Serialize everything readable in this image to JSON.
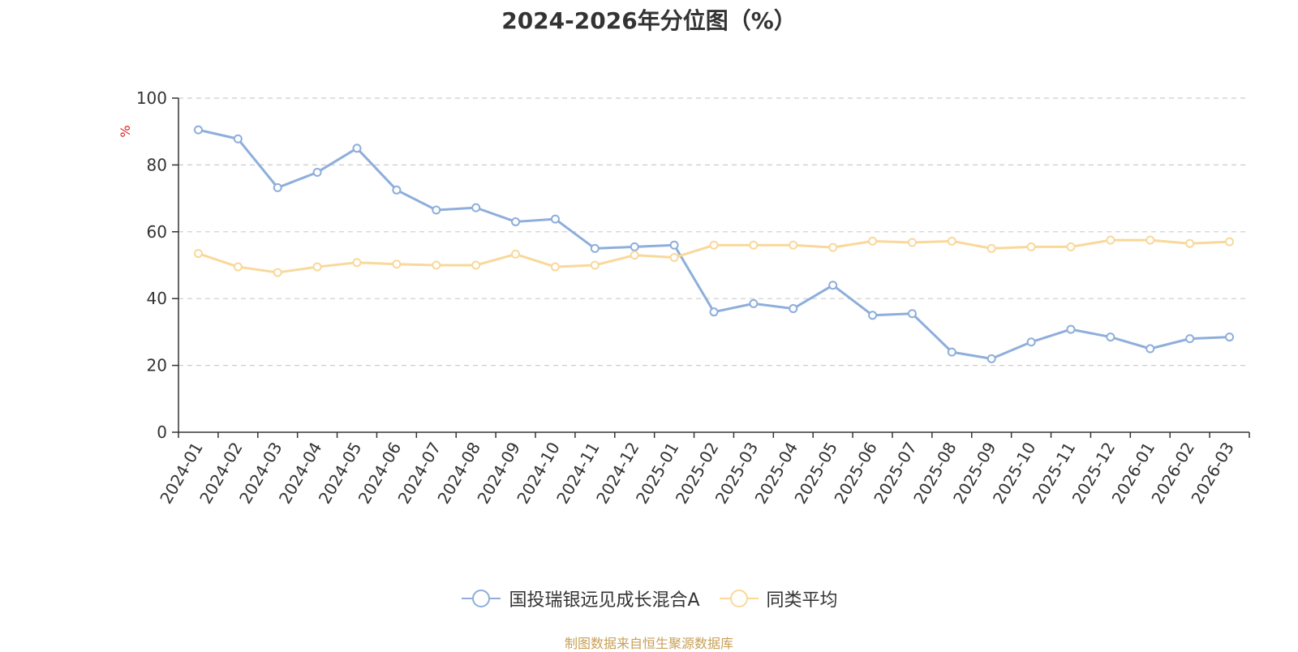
{
  "chart_data": {
    "type": "line",
    "title": "2024-2026年分位图（%）",
    "ylabel": "%",
    "xlabel": "",
    "ylim": [
      0,
      100
    ],
    "yticks": [
      0,
      20,
      40,
      60,
      80,
      100
    ],
    "grid": true,
    "legend_position": "bottom",
    "categories": [
      "2024-01",
      "2024-02",
      "2024-03",
      "2024-04",
      "2024-05",
      "2024-06",
      "2024-07",
      "2024-08",
      "2024-09",
      "2024-10",
      "2024-11",
      "2024-12",
      "2025-01",
      "2025-02",
      "2025-03",
      "2025-04",
      "2025-05",
      "2025-06",
      "2025-07",
      "2025-08",
      "2025-09",
      "2025-10",
      "2025-11",
      "2025-12",
      "2026-01",
      "2026-02",
      "2026-03"
    ],
    "series": [
      {
        "name": "国投瑞银远见成长混合A",
        "color": "#8eaedb",
        "values": [
          90.5,
          87.8,
          73.2,
          77.8,
          85.0,
          72.5,
          66.5,
          67.2,
          63.0,
          63.8,
          55.0,
          55.5,
          56.0,
          36.0,
          38.5,
          37.0,
          44.0,
          35.0,
          35.5,
          24.0,
          22.0,
          27.0,
          30.8,
          28.5,
          25.0,
          28.0,
          28.5
        ]
      },
      {
        "name": "同类平均",
        "color": "#f9d89a",
        "values": [
          53.5,
          49.5,
          47.8,
          49.5,
          50.8,
          50.3,
          50.0,
          50.0,
          53.3,
          49.5,
          50.0,
          53.0,
          52.3,
          56.0,
          56.0,
          56.0,
          55.3,
          57.2,
          56.8,
          57.2,
          55.0,
          55.5,
          55.5,
          57.5,
          57.5,
          56.5,
          57.0
        ]
      }
    ]
  },
  "source_text": "制图数据来自恒生聚源数据库"
}
